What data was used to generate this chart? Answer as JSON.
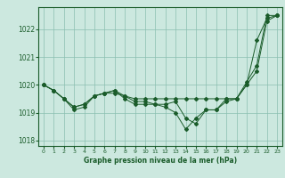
{
  "xlabel": "Graphe pression niveau de la mer (hPa)",
  "bg_color": "#cce8df",
  "grid_color": "#8bbfb0",
  "line_color": "#1a5c2a",
  "ylim": [
    1017.8,
    1022.8
  ],
  "xlim": [
    -0.5,
    23.5
  ],
  "yticks": [
    1018,
    1019,
    1020,
    1021,
    1022
  ],
  "xticks": [
    0,
    1,
    2,
    3,
    4,
    5,
    6,
    7,
    8,
    9,
    10,
    11,
    12,
    13,
    14,
    15,
    16,
    17,
    18,
    19,
    20,
    21,
    22,
    23
  ],
  "series": [
    [
      1020.0,
      1019.8,
      1019.5,
      1019.2,
      1019.3,
      1019.6,
      1019.7,
      1019.7,
      1019.6,
      1019.5,
      1019.5,
      1019.5,
      1019.5,
      1019.5,
      1019.5,
      1019.5,
      1019.5,
      1019.5,
      1019.5,
      1019.5,
      1020.0,
      1020.5,
      1022.3,
      1022.5
    ],
    [
      1020.0,
      1019.8,
      1019.5,
      1019.2,
      1019.3,
      1019.6,
      1019.7,
      1019.8,
      1019.6,
      1019.4,
      1019.4,
      1019.3,
      1019.2,
      1019.0,
      1018.4,
      1018.8,
      1019.1,
      1019.1,
      1019.4,
      1019.5,
      1020.0,
      1021.6,
      1022.4,
      1022.5
    ],
    [
      1020.0,
      1019.8,
      1019.5,
      1019.1,
      1019.2,
      1019.6,
      1019.7,
      1019.8,
      1019.5,
      1019.3,
      1019.3,
      1019.3,
      1019.3,
      1019.4,
      1018.8,
      1018.6,
      1019.1,
      1019.1,
      1019.5,
      1019.5,
      1020.1,
      1020.7,
      1022.5,
      1022.5
    ]
  ]
}
